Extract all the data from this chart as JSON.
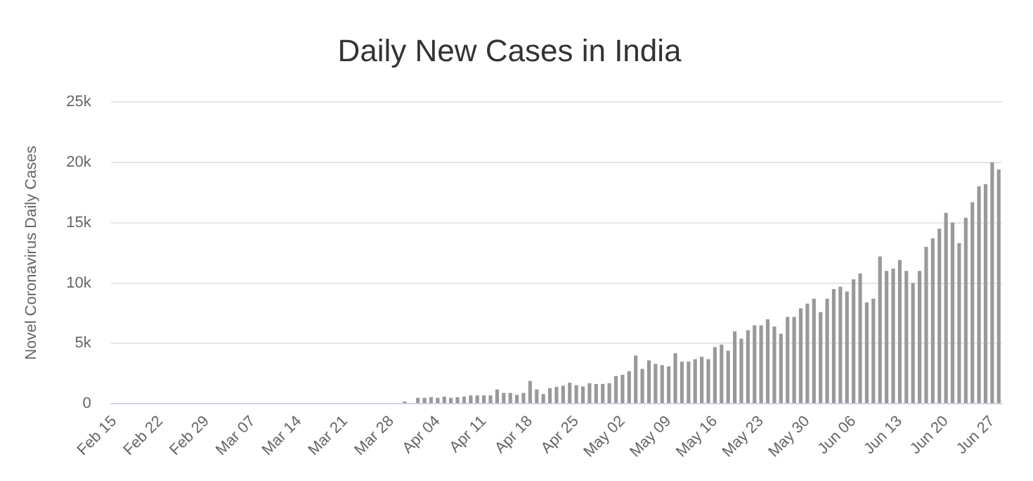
{
  "chart_data": {
    "type": "bar",
    "title": "Daily New Cases in India",
    "ylabel": "Novel Coronavirus Daily Cases",
    "categories": [
      "Feb 15",
      null,
      null,
      null,
      null,
      null,
      null,
      "Feb 22",
      null,
      null,
      null,
      null,
      null,
      null,
      "Feb 29",
      null,
      null,
      null,
      null,
      null,
      null,
      "Mar 07",
      null,
      null,
      null,
      null,
      null,
      null,
      "Mar 14",
      null,
      null,
      null,
      null,
      null,
      null,
      "Mar 21",
      null,
      null,
      null,
      null,
      null,
      null,
      "Mar 28",
      null,
      null,
      null,
      null,
      null,
      null,
      "Apr 04",
      null,
      null,
      null,
      null,
      null,
      null,
      "Apr 11",
      null,
      null,
      null,
      null,
      null,
      null,
      "Apr 18",
      null,
      null,
      null,
      null,
      null,
      null,
      "Apr 25",
      null,
      null,
      null,
      null,
      null,
      null,
      "May 02",
      null,
      null,
      null,
      null,
      null,
      null,
      "May 09",
      null,
      null,
      null,
      null,
      null,
      null,
      "May 16",
      null,
      null,
      null,
      null,
      null,
      null,
      "May 23",
      null,
      null,
      null,
      null,
      null,
      null,
      "May 30",
      null,
      null,
      null,
      null,
      null,
      null,
      "Jun 06",
      null,
      null,
      null,
      null,
      null,
      null,
      "Jun 13",
      null,
      null,
      null,
      null,
      null,
      null,
      "Jun 20",
      null,
      null,
      null,
      null,
      null,
      null,
      "Jun 27",
      null
    ],
    "values": [
      0,
      0,
      0,
      0,
      0,
      0,
      0,
      0,
      0,
      0,
      0,
      0,
      0,
      0,
      0,
      0,
      0,
      0,
      0,
      0,
      0,
      0,
      0,
      0,
      0,
      0,
      0,
      0,
      0,
      0,
      0,
      0,
      0,
      0,
      0,
      0,
      0,
      0,
      0,
      0,
      0,
      0,
      0,
      0,
      200,
      null,
      500,
      500,
      550,
      500,
      600,
      500,
      550,
      600,
      700,
      700,
      700,
      700,
      1200,
      900,
      900,
      750,
      900,
      1900,
      1200,
      800,
      1300,
      1400,
      1500,
      1750,
      1550,
      1450,
      1700,
      1650,
      1650,
      1700,
      2300,
      2400,
      2700,
      4000,
      2900,
      3600,
      3300,
      3200,
      3100,
      4200,
      3500,
      3500,
      3700,
      3900,
      3700,
      4700,
      4900,
      4400,
      6000,
      5400,
      6100,
      6500,
      6500,
      7000,
      6400,
      5800,
      7200,
      7200,
      7900,
      8300,
      8700,
      7600,
      8700,
      9500,
      9700,
      9300,
      10300,
      10800,
      8400,
      8700,
      12200,
      11000,
      11200,
      11900,
      11000,
      10000,
      11000,
      13000,
      13700,
      14500,
      15800,
      15000,
      13300,
      15400,
      16700,
      18000,
      18200,
      20000,
      19400
    ],
    "color": "#999999",
    "ylim": [
      0,
      25000
    ],
    "yticks": [
      0,
      {
        "value": 5000,
        "label": "5k"
      },
      {
        "value": 10000,
        "label": "10k"
      },
      {
        "value": 15000,
        "label": "15k"
      },
      {
        "value": 20000,
        "label": "20k"
      },
      {
        "value": 25000,
        "label": "25k"
      }
    ],
    "grid": "y",
    "legend": false
  }
}
